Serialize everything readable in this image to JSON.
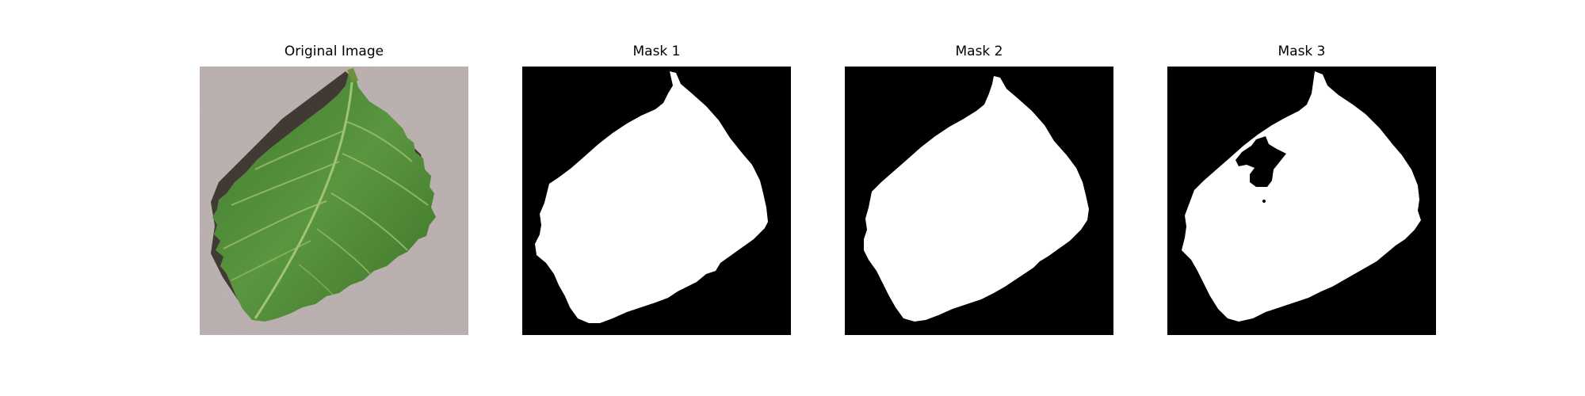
{
  "figure": {
    "panels": [
      {
        "title": "Original Image",
        "content": "photo of a green leaf on a mauve textured background"
      },
      {
        "title": "Mask 1",
        "content": "binary segmentation mask, white leaf on black"
      },
      {
        "title": "Mask 2",
        "content": "binary segmentation mask, white leaf on black"
      },
      {
        "title": "Mask 3",
        "content": "binary segmentation mask, white leaf on black with interior hole"
      }
    ]
  },
  "colors": {
    "background": "#ffffff",
    "photo_background": "#b9adad",
    "leaf_green": "#4f8a36",
    "leaf_dark_green": "#3a6f29",
    "vein": "#a9c97a",
    "shadow": "#2b241f",
    "mask_background": "#000000",
    "mask_foreground": "#ffffff"
  }
}
